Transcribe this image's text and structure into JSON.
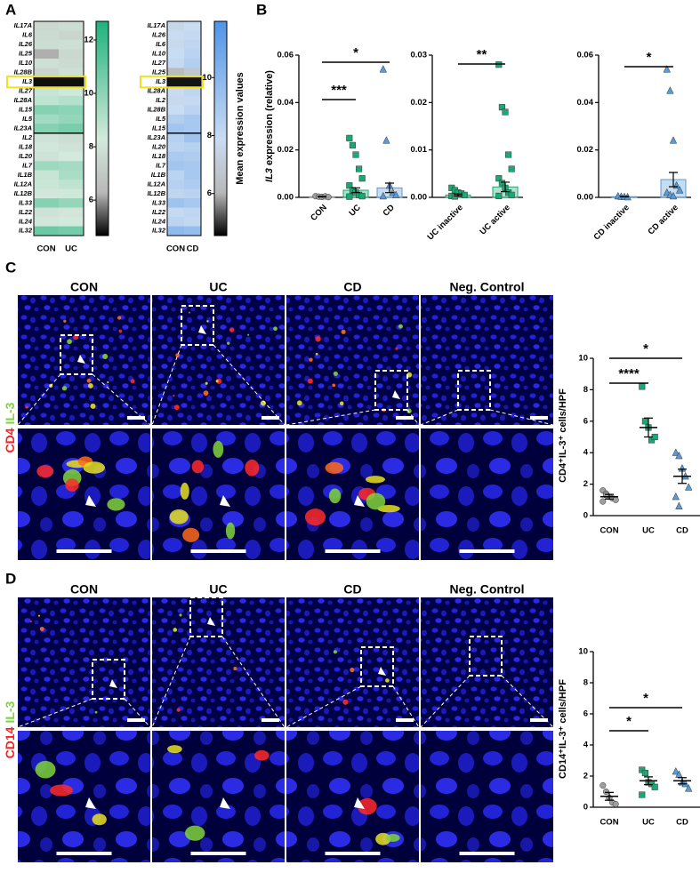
{
  "panel_labels": [
    "A",
    "B",
    "C",
    "D"
  ],
  "panel_c": {
    "columns": [
      "CON",
      "UC",
      "CD",
      "Neg. Control"
    ],
    "channels": [
      "CD4",
      "IL-3"
    ]
  },
  "panel_d": {
    "columns": [
      "CON",
      "UC",
      "CD",
      "Neg. Control"
    ],
    "channels": [
      "CD14",
      "IL-3"
    ]
  },
  "chart_data": [
    {
      "type": "heatmap",
      "rows": [
        "IL17A",
        "IL6",
        "IL26",
        "IL25",
        "IL10",
        "IL28B",
        "IL3",
        "IL27",
        "IL28A",
        "IL15",
        "IL5",
        "IL23A",
        "IL2",
        "IL18",
        "IL20",
        "IL7",
        "IL1B",
        "IL12A",
        "IL12B",
        "IL33",
        "IL22",
        "IL24",
        "IL32"
      ],
      "columns": [
        "CON",
        "UC"
      ],
      "values": [
        [
          7.6,
          7.8
        ],
        [
          7.7,
          7.5
        ],
        [
          7.8,
          7.9
        ],
        [
          6.2,
          7.6
        ],
        [
          7.9,
          7.7
        ],
        [
          7.5,
          7.9
        ],
        [
          4.8,
          4.8
        ],
        [
          8.6,
          8.4
        ],
        [
          8.8,
          9.0
        ],
        [
          10.2,
          10.0
        ],
        [
          9.5,
          9.8
        ],
        [
          10.2,
          10.5
        ],
        [
          8.0,
          7.8
        ],
        [
          8.2,
          8.0
        ],
        [
          8.0,
          8.3
        ],
        [
          9.6,
          9.4
        ],
        [
          8.6,
          9.3
        ],
        [
          8.5,
          8.8
        ],
        [
          8.2,
          8.4
        ],
        [
          10.2,
          9.8
        ],
        [
          8.0,
          8.1
        ],
        [
          8.2,
          8.3
        ],
        [
          10.8,
          10.6
        ]
      ],
      "clim": [
        4.67,
        12.7
      ],
      "cticks": [
        6,
        8,
        10,
        12
      ],
      "highlight": "IL3",
      "colormap": [
        "#000000",
        "#b8b8b8",
        "#d3e9dc",
        "#1db37c"
      ]
    },
    {
      "type": "heatmap",
      "rows": [
        "IL17A",
        "IL26",
        "IL6",
        "IL10",
        "IL27",
        "IL25",
        "IL3",
        "IL28A",
        "IL2",
        "IL28B",
        "IL5",
        "IL15",
        "IL23A",
        "IL20",
        "IL18",
        "IL7",
        "IL1B",
        "IL12A",
        "IL12B",
        "IL33",
        "IL22",
        "IL24",
        "IL32"
      ],
      "columns": [
        "CON",
        "CD"
      ],
      "values": [
        [
          7.6,
          7.9
        ],
        [
          7.8,
          8.0
        ],
        [
          7.7,
          8.2
        ],
        [
          7.9,
          8.4
        ],
        [
          8.0,
          8.6
        ],
        [
          6.2,
          6.8
        ],
        [
          4.7,
          4.7
        ],
        [
          7.8,
          8.2
        ],
        [
          7.7,
          8.0
        ],
        [
          7.9,
          8.3
        ],
        [
          8.6,
          9.0
        ],
        [
          9.2,
          9.0
        ],
        [
          8.5,
          9.3
        ],
        [
          8.3,
          8.5
        ],
        [
          8.9,
          8.7
        ],
        [
          9.2,
          9.0
        ],
        [
          8.4,
          9.0
        ],
        [
          8.5,
          8.8
        ],
        [
          8.2,
          8.4
        ],
        [
          9.3,
          9.0
        ],
        [
          8.0,
          8.2
        ],
        [
          8.3,
          8.1
        ],
        [
          9.8,
          9.6
        ]
      ],
      "clim": [
        4.55,
        11.94
      ],
      "cticks": [
        6,
        8,
        10
      ],
      "highlight": "IL3",
      "colormap": [
        "#000000",
        "#b8b8b8",
        "#c9dcf2",
        "#4f94e8"
      ],
      "colorbar_label": "Mean expression values"
    },
    {
      "type": "bar",
      "ylabel": [
        "IL3",
        " expression (relative)"
      ],
      "categories": [
        "CON",
        "UC",
        "CD"
      ],
      "values": [
        0.0003,
        0.003,
        0.004
      ],
      "errors": [
        0.0001,
        0.001,
        0.002
      ],
      "points": [
        [
          0.0005,
          0.0003,
          0.0002,
          0.0004,
          0.0001
        ],
        [
          0.025,
          0.022,
          0.018,
          0.012,
          0.008,
          0.005,
          0.003,
          0.002,
          0.001,
          0.0005,
          0.0003
        ],
        [
          0.054,
          0.024,
          0.005,
          0.002,
          0.001,
          0.0005
        ]
      ],
      "colors": [
        "#9e9e9e",
        "#1aa874",
        "#5b9bd5"
      ],
      "markers": [
        "circle",
        "square",
        "triangle"
      ],
      "ylim": [
        0,
        0.06
      ],
      "yticks": [
        {
          "value": 0,
          "label": "0.00"
        },
        {
          "value": 0.02,
          "label": "0.02"
        },
        {
          "value": 0.04,
          "label": "0.04"
        },
        {
          "value": 0.06,
          "label": "0.06"
        }
      ],
      "significance": [
        {
          "label": "***",
          "between": [
            "CON",
            "UC"
          ]
        },
        {
          "label": "*",
          "between": [
            "CON",
            "CD"
          ]
        }
      ]
    },
    {
      "type": "bar",
      "categories": [
        "UC inactive",
        "UC active"
      ],
      "values": [
        0.0005,
        0.0022
      ],
      "errors": [
        0.0002,
        0.001
      ],
      "points": [
        [
          0.002,
          0.0015,
          0.001,
          0.0008,
          0.0005,
          0.0003,
          0.0002
        ],
        [
          0.028,
          0.019,
          0.018,
          0.009,
          0.006,
          0.004,
          0.003,
          0.002,
          0.001,
          0.0005,
          0.0003
        ]
      ],
      "colors": [
        "#1aa874",
        "#1aa874"
      ],
      "markers": [
        "square",
        "square"
      ],
      "ylim": [
        0,
        0.03
      ],
      "yticks": [
        {
          "value": 0,
          "label": "0.00"
        },
        {
          "value": 0.01,
          "label": "0.01"
        },
        {
          "value": 0.02,
          "label": "0.02"
        },
        {
          "value": 0.03,
          "label": "0.03"
        }
      ],
      "significance": [
        {
          "label": "**",
          "between": [
            "UC inactive",
            "UC active"
          ]
        }
      ]
    },
    {
      "type": "bar",
      "categories": [
        "CD inactive",
        "CD active"
      ],
      "values": [
        0.0003,
        0.0075
      ],
      "errors": [
        0.0001,
        0.003
      ],
      "points": [
        [
          0.0005,
          0.0003,
          0.0002,
          0.0001
        ],
        [
          0.054,
          0.045,
          0.024,
          0.005,
          0.003,
          0.002,
          0.001,
          0.0005
        ]
      ],
      "colors": [
        "#5b9bd5",
        "#5b9bd5"
      ],
      "markers": [
        "triangle",
        "triangle"
      ],
      "ylim": [
        0,
        0.06
      ],
      "yticks": [
        {
          "value": 0,
          "label": "0.00"
        },
        {
          "value": 0.02,
          "label": "0.02"
        },
        {
          "value": 0.04,
          "label": "0.04"
        },
        {
          "value": 0.06,
          "label": "0.06"
        }
      ],
      "significance": [
        {
          "label": "*",
          "between": [
            "CD inactive",
            "CD active"
          ]
        }
      ]
    },
    {
      "type": "dotplot",
      "ylabel": "CD4⁺IL-3⁺ cells/HPF",
      "categories": [
        "CON",
        "UC",
        "CD"
      ],
      "values": [
        1.2,
        5.6,
        2.5
      ],
      "errors": [
        0.15,
        0.6,
        0.45
      ],
      "points": [
        [
          1.6,
          1.4,
          1.2,
          1.1,
          1.0,
          0.9,
          1.3
        ],
        [
          8.2,
          6.0,
          5.6,
          4.8,
          5.0
        ],
        [
          4.0,
          3.8,
          3.0,
          2.5,
          1.8,
          1.2,
          0.6
        ]
      ],
      "colors": [
        "#9e9e9e",
        "#1aa874",
        "#5b9bd5"
      ],
      "markers": [
        "circle",
        "square",
        "triangle"
      ],
      "ylim": [
        0,
        10
      ],
      "yticks": [
        0,
        2,
        4,
        6,
        8,
        10
      ],
      "significance": [
        {
          "label": "****",
          "between": [
            "CON",
            "UC"
          ]
        },
        {
          "label": "*",
          "between": [
            "CON",
            "CD"
          ]
        }
      ]
    },
    {
      "type": "dotplot",
      "ylabel": "CD14⁺IL-3⁺ cells/HPF",
      "categories": [
        "CON",
        "UC",
        "CD"
      ],
      "values": [
        0.7,
        1.7,
        1.7
      ],
      "errors": [
        0.25,
        0.25,
        0.2
      ],
      "points": [
        [
          1.4,
          1.0,
          0.6,
          0.3,
          0.2
        ],
        [
          2.4,
          2.2,
          1.6,
          1.5,
          1.3,
          0.8
        ],
        [
          2.3,
          2.1,
          1.6,
          1.5,
          1.2
        ]
      ],
      "colors": [
        "#9e9e9e",
        "#1aa874",
        "#5b9bd5"
      ],
      "markers": [
        "circle",
        "square",
        "triangle"
      ],
      "ylim": [
        0,
        10
      ],
      "yticks": [
        0,
        2,
        4,
        6,
        8,
        10
      ],
      "significance": [
        {
          "label": "*",
          "between": [
            "CON",
            "UC"
          ]
        },
        {
          "label": "*",
          "between": [
            "CON",
            "CD"
          ]
        }
      ]
    }
  ]
}
